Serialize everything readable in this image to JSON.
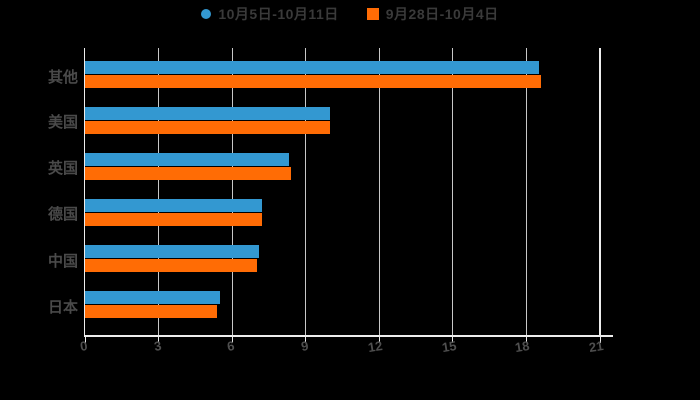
{
  "legend": {
    "items": [
      {
        "label": "10月5日-10月11日",
        "marker": "circle",
        "color": "#3398d1"
      },
      {
        "label": "9月28日-10月4日",
        "marker": "square",
        "color": "#ff6c05"
      }
    ]
  },
  "chart_data": {
    "type": "bar",
    "orientation": "horizontal",
    "title": "",
    "xlabel": "",
    "ylabel": "",
    "categories": [
      "其他",
      "美国",
      "英国",
      "德国",
      "中国",
      "日本"
    ],
    "series": [
      {
        "name": "10月5日-10月11日",
        "color": "#3398d1",
        "values": [
          18.5,
          10.0,
          8.3,
          7.2,
          7.1,
          5.5
        ]
      },
      {
        "name": "9月28日-10月4日",
        "color": "#ff6c05",
        "values": [
          18.6,
          10.0,
          8.4,
          7.2,
          7.0,
          5.4
        ]
      }
    ],
    "x_ticks": [
      0,
      3,
      6,
      9,
      12,
      15,
      18,
      21
    ],
    "xlim": [
      0,
      21.5
    ],
    "grid": true,
    "legend_position": "top",
    "background": "#000000",
    "colors": {
      "gridline": "#c8c8c8",
      "axis": "#ededed",
      "tick_label": "#4f4f4f",
      "category_label": "#4a4a4a",
      "legend_text": "#3a3a3a"
    }
  }
}
